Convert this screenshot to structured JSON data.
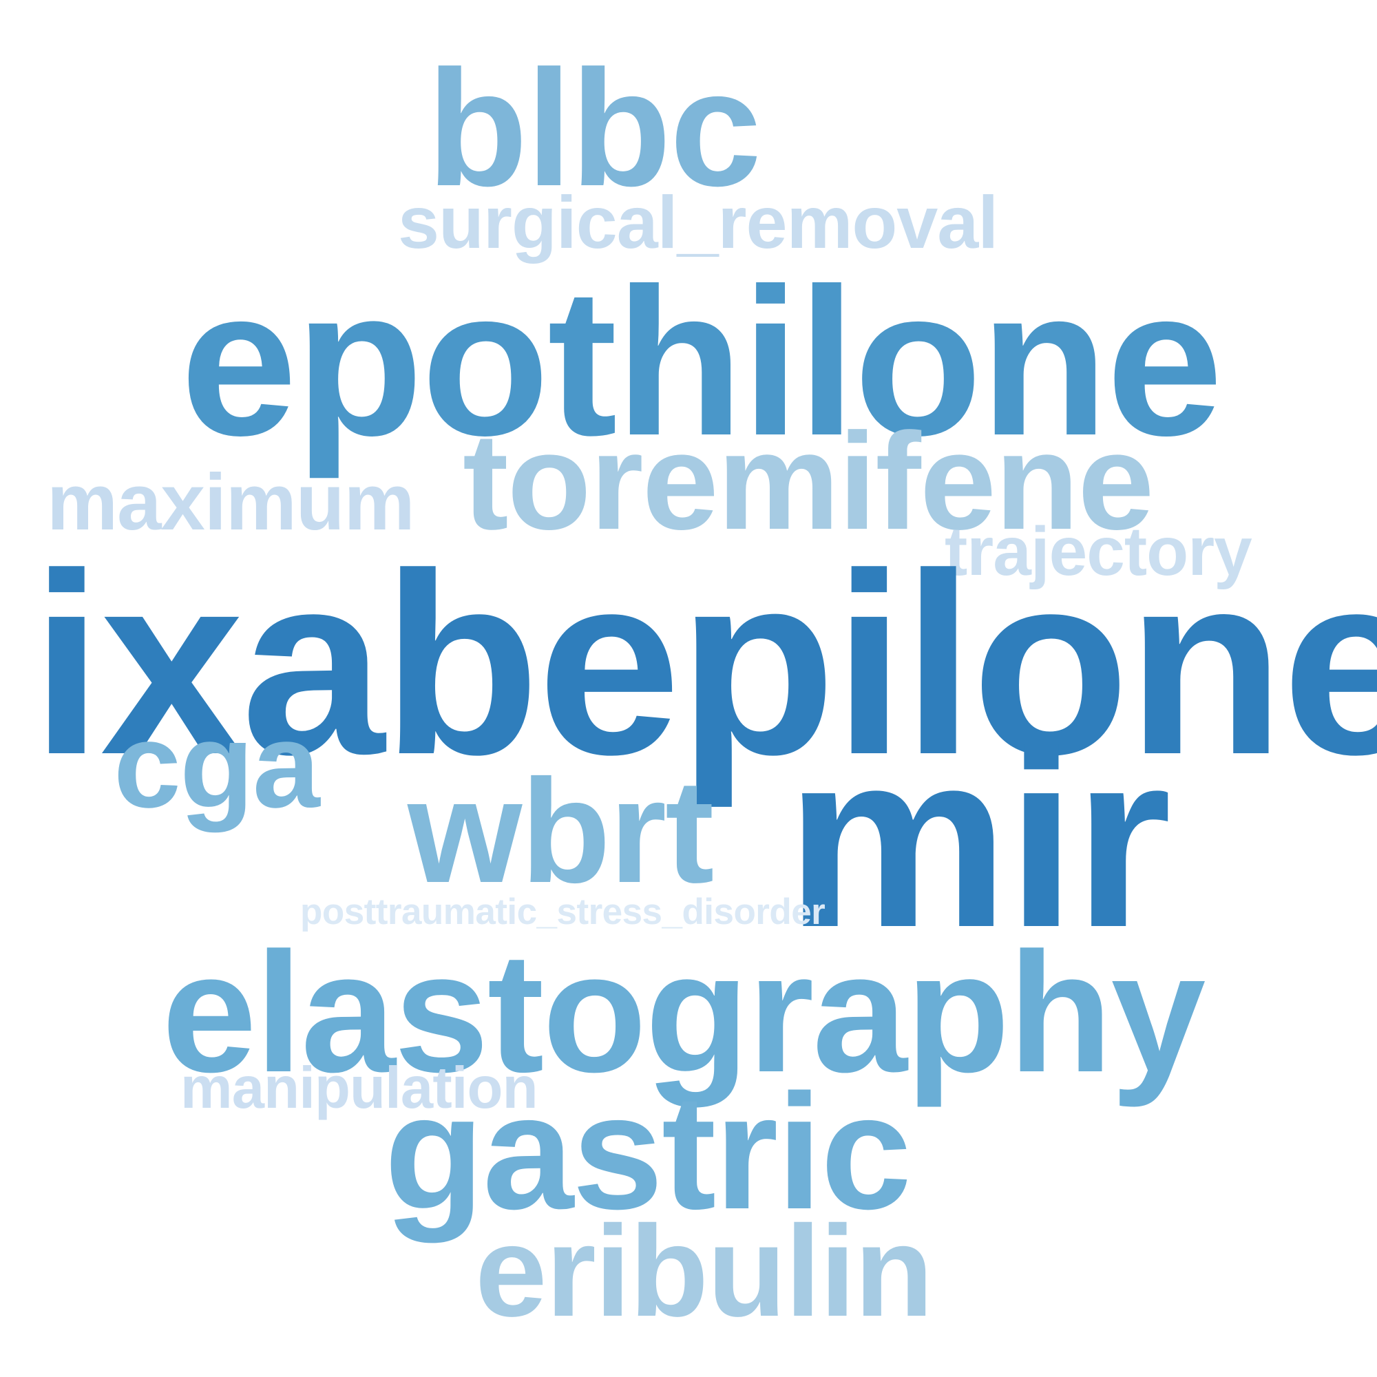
{
  "word_cloud": {
    "words": [
      {
        "id": "blbc",
        "text": "blbc",
        "color": "#7eb6d9"
      },
      {
        "id": "surgical_removal",
        "text": "surgical_removal",
        "color": "#c7dcef"
      },
      {
        "id": "epothilone",
        "text": "epothilone",
        "color": "#4a97c9"
      },
      {
        "id": "maximum",
        "text": "maximum",
        "color": "#c6dbef"
      },
      {
        "id": "toremifene",
        "text": "toremifene",
        "color": "#a6cbe3"
      },
      {
        "id": "trajectory",
        "text": "trajectory",
        "color": "#cadef0"
      },
      {
        "id": "ixabepilone",
        "text": "ixabepilone",
        "color": "#2f7ebc"
      },
      {
        "id": "cga",
        "text": "cga",
        "color": "#7db7da"
      },
      {
        "id": "wbrt",
        "text": "wbrt",
        "color": "#82badb"
      },
      {
        "id": "mir",
        "text": "mir",
        "color": "#2f7ebc"
      },
      {
        "id": "posttraumatic_stress_disorder",
        "text": "posttraumatic_stress_disorder",
        "color": "#dbe9f6"
      },
      {
        "id": "elastography",
        "text": "elastography",
        "color": "#6aaed6"
      },
      {
        "id": "manipulation",
        "text": "manipulation",
        "color": "#cbdef1"
      },
      {
        "id": "gastric",
        "text": "gastric",
        "color": "#6fb0d7"
      },
      {
        "id": "eribulin",
        "text": "eribulin",
        "color": "#a6cbe3"
      }
    ]
  }
}
